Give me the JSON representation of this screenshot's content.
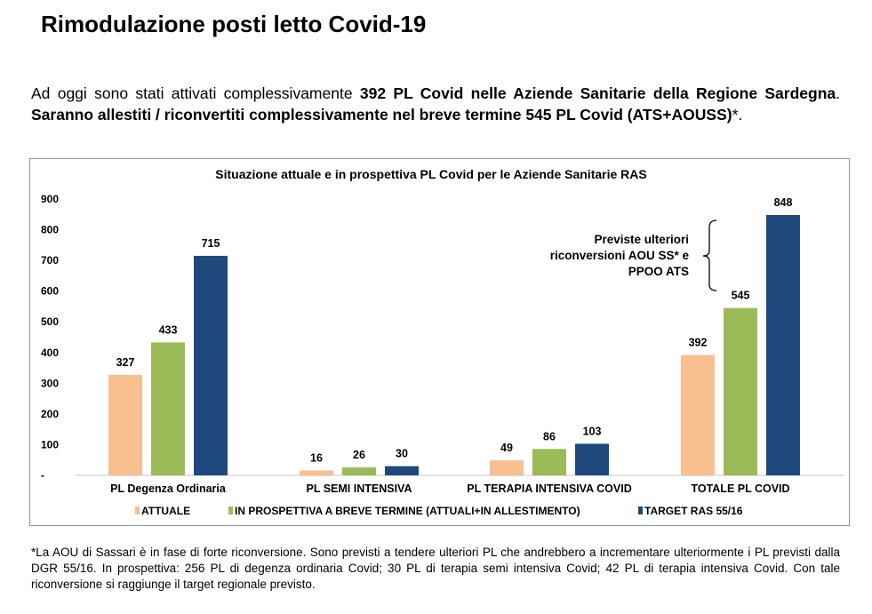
{
  "header": {
    "title": "Rimodulazione posti letto Covid-19"
  },
  "intro": {
    "part1": "Ad oggi sono stati attivati complessivamente ",
    "bold1": "392 PL Covid nelle Aziende Sanitarie della Regione Sardegna",
    "part2": ". ",
    "bold2": "Saranno allestiti / riconvertiti complessivamente nel breve termine 545 PL Covid (ATS+AOUSS)",
    "part3": "*."
  },
  "chart_data": {
    "type": "bar",
    "title": "Situazione attuale e in prospettiva PL Covid per le Aziende Sanitarie RAS",
    "categories": [
      "PL Degenza Ordinaria",
      "PL SEMI INTENSIVA",
      "PL TERAPIA INTENSIVA COVID",
      "TOTALE PL COVID"
    ],
    "series": [
      {
        "name": "ATTUALE",
        "color": "#f8bf8f",
        "values": [
          327,
          16,
          49,
          392
        ]
      },
      {
        "name": "IN PROSPETTIVA A BREVE TERMINE (ATTUALI+IN ALLESTIMENTO)",
        "color": "#9bbb59",
        "values": [
          433,
          26,
          86,
          545
        ]
      },
      {
        "name": "TARGET RAS 55/16",
        "color": "#1f497d",
        "values": [
          715,
          30,
          103,
          848
        ]
      }
    ],
    "yticks": [
      "-",
      "100",
      "200",
      "300",
      "400",
      "500",
      "600",
      "700",
      "800",
      "900"
    ],
    "ylim": [
      0,
      900
    ],
    "grid": false,
    "legend": "bottom",
    "annotation": [
      "Previste ulteriori",
      "riconversioni AOU SS* e",
      "PPOO ATS"
    ]
  },
  "footnote": "*La AOU di Sassari è in fase di forte riconversione. Sono previsti a tendere ulteriori PL che andrebbero a incrementare ulteriormente i PL previsti dalla DGR 55/16. In prospettiva: 256 PL di degenza ordinaria Covid; 30 PL di terapia semi intensiva Covid; 42 PL di terapia intensiva Covid. Con tale riconversione si raggiunge il target regionale previsto."
}
